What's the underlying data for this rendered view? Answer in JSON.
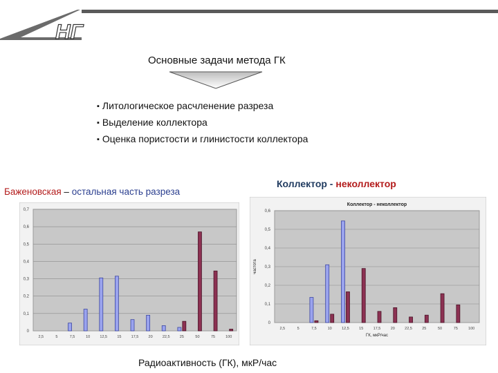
{
  "logo": {
    "text": "НГ"
  },
  "heading": {
    "title": "Основные задачи метода ГК"
  },
  "tasks": [
    "Литологическое расчленение разреза",
    "Выделение коллектора",
    "Оценка пористости и глинистости коллектора"
  ],
  "left_label": {
    "part1": "Баженовская",
    "sep": " – ",
    "part2": "остальная часть разреза"
  },
  "right_label": {
    "part1": "Коллектор",
    "sep": " - ",
    "part2": "неколлектор"
  },
  "x_caption": "Радиоактивность (ГК), мкР/час",
  "colors": {
    "blue_bar": "#9aa3ee",
    "red_bar": "#8c3152",
    "plot_bg": "#c8c8c8",
    "frame_bg": "#f2f2f2"
  },
  "chart_data": [
    {
      "type": "bar",
      "title": "",
      "categories": [
        "2,5",
        "5",
        "7,5",
        "10",
        "12,5",
        "15",
        "17,5",
        "20",
        "22,5",
        "25",
        "50",
        "75",
        "100"
      ],
      "yticks": [
        "0",
        "0,1",
        "0,2",
        "0,3",
        "0,4",
        "0,5",
        "0,6",
        "0,7"
      ],
      "ylim": [
        0,
        0.7
      ],
      "series": [
        {
          "values": [
            0,
            0,
            0.045,
            0.125,
            0.305,
            0.315,
            0.065,
            0.09,
            0.03,
            0.02,
            0,
            0,
            0
          ]
        },
        {
          "values": [
            0,
            0,
            0,
            0,
            0,
            0,
            0,
            0,
            0,
            0.055,
            0.57,
            0.345,
            0.01
          ]
        }
      ]
    },
    {
      "type": "bar",
      "title": "Коллектор - неколлектор",
      "ylabel": "частота",
      "xlabel": "ГК, мкР/час",
      "categories": [
        "2,5",
        "5",
        "7,5",
        "10",
        "12,5",
        "15",
        "17,5",
        "20",
        "22,5",
        "25",
        "50",
        "75",
        "100"
      ],
      "yticks": [
        "0",
        "0,1",
        "0,2",
        "0,3",
        "0,4",
        "0,5",
        "0,6"
      ],
      "ylim": [
        0,
        0.6
      ],
      "series": [
        {
          "values": [
            0,
            0,
            0.135,
            0.31,
            0.545,
            0,
            0,
            0,
            0,
            0,
            0,
            0,
            0
          ]
        },
        {
          "values": [
            0,
            0,
            0.01,
            0.045,
            0.165,
            0.29,
            0.06,
            0.08,
            0.03,
            0.04,
            0.155,
            0.095,
            0
          ]
        }
      ]
    }
  ]
}
